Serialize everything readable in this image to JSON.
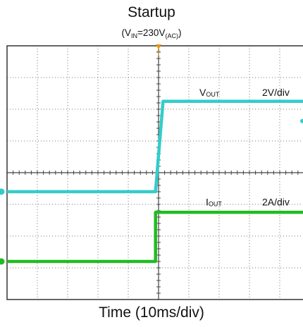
{
  "chart_data": {
    "type": "line",
    "title": "Startup",
    "subtitle": {
      "prefix": "(V",
      "sub1": "IN",
      "mid": "=230V",
      "sub2": "(AC)",
      "suffix": ")"
    },
    "xlabel": "Time (10ms/div)",
    "ylabel": "",
    "grid": true,
    "x_divisions": 10,
    "y_divisions": 8,
    "trigger_marker": "T",
    "series": [
      {
        "name_main": "V",
        "name_sub": "OUT",
        "scale": "2V/div",
        "color": "#33cccc",
        "points": [
          [
            0,
            3.4
          ],
          [
            4.9,
            3.4
          ],
          [
            5.15,
            6.25
          ],
          [
            10,
            6.25
          ]
        ]
      },
      {
        "name_main": "I",
        "name_sub": "OUT",
        "scale": "2A/div",
        "color": "#22bb22",
        "points": [
          [
            0,
            1.2
          ],
          [
            4.9,
            1.2
          ],
          [
            4.9,
            2.75
          ],
          [
            10,
            2.75
          ]
        ]
      }
    ]
  }
}
